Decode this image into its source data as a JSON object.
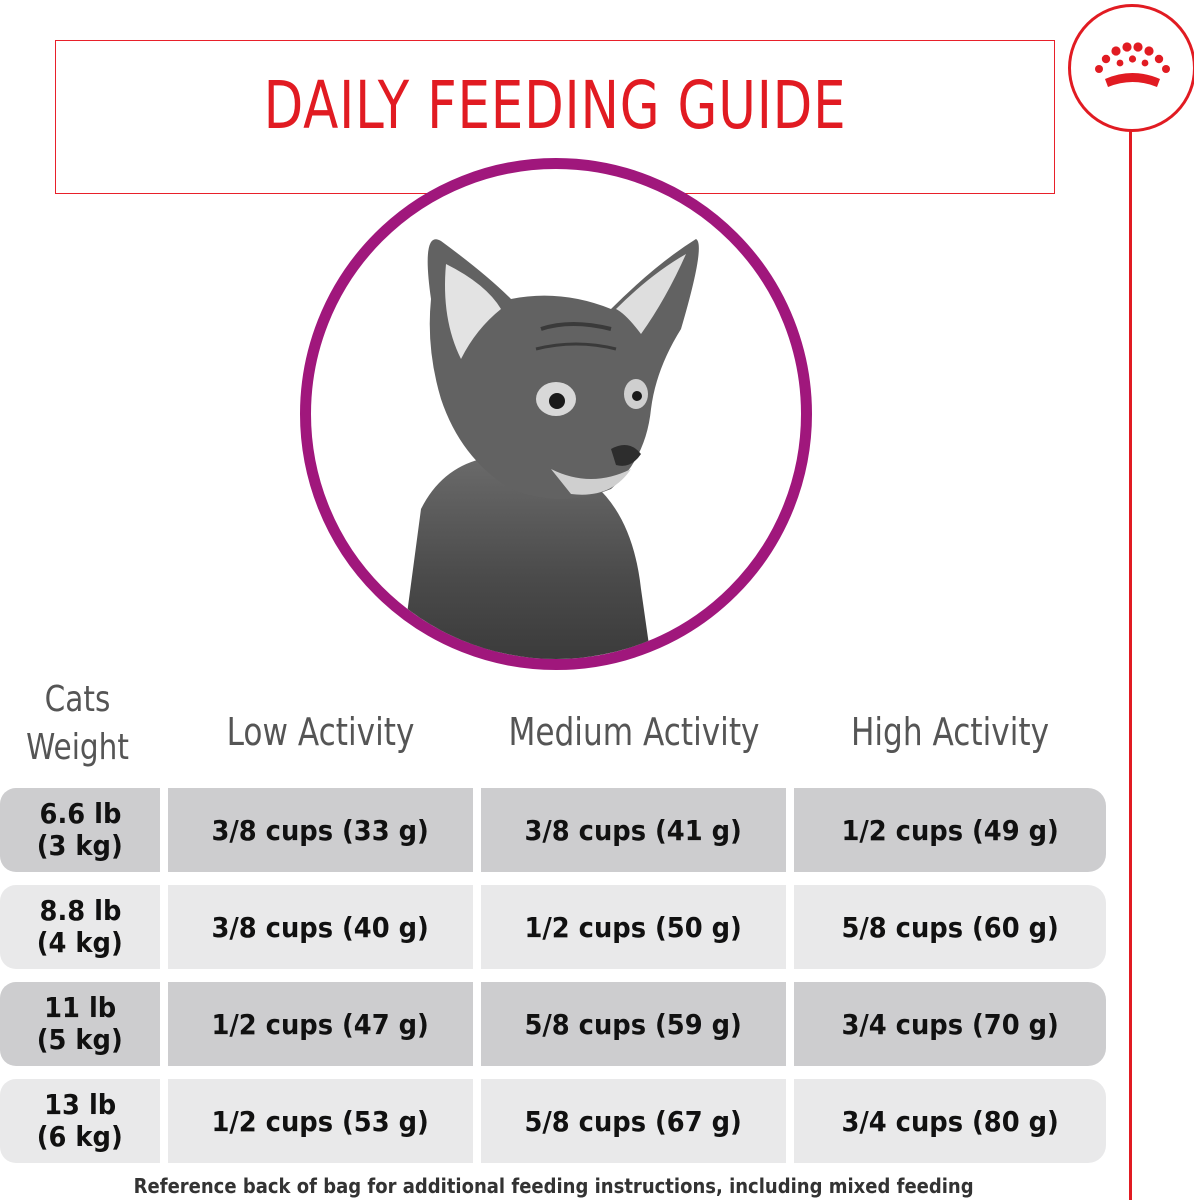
{
  "title": "DAILY FEEDING GUIDE",
  "colors": {
    "brand_red": "#e11b22",
    "ring_purple": "#a0177c",
    "row_dark": "#cdcdcf",
    "row_light": "#e9e9ea"
  },
  "logo": {
    "icon": "crown-icon"
  },
  "image": {
    "subject": "cat-photo"
  },
  "table": {
    "weight_header_line1": "Cats",
    "weight_header_line2": "Weight",
    "columns": [
      "Low Activity",
      "Medium Activity",
      "High Activity"
    ],
    "rows": [
      {
        "weight_lb": "6.6 lb",
        "weight_kg": "(3 kg)",
        "low": "3/8 cups (33 g)",
        "medium": "3/8 cups (41 g)",
        "high": "1/2 cups (49 g)"
      },
      {
        "weight_lb": "8.8 lb",
        "weight_kg": "(4 kg)",
        "low": "3/8 cups (40 g)",
        "medium": "1/2 cups (50 g)",
        "high": "5/8 cups (60 g)"
      },
      {
        "weight_lb": "11 lb",
        "weight_kg": "(5 kg)",
        "low": "1/2 cups (47 g)",
        "medium": "5/8 cups (59 g)",
        "high": "3/4 cups (70 g)"
      },
      {
        "weight_lb": "13 lb",
        "weight_kg": "(6 kg)",
        "low": "1/2 cups (53 g)",
        "medium": "5/8 cups (67 g)",
        "high": "3/4 cups (80 g)"
      }
    ]
  },
  "footnote": "Reference back of bag for additional feeding instructions, including mixed feeding"
}
